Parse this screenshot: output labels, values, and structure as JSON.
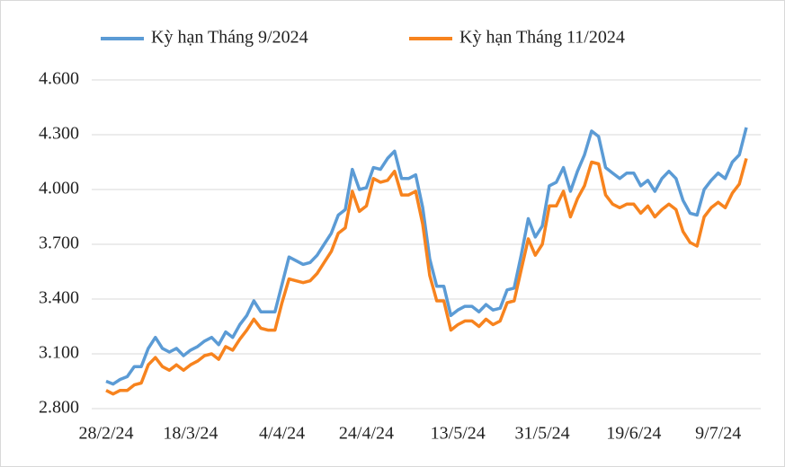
{
  "chart_data": {
    "type": "line",
    "categories": [
      "28/2/24",
      null,
      null,
      null,
      null,
      null,
      null,
      null,
      null,
      null,
      null,
      null,
      "18/3/24",
      null,
      null,
      null,
      null,
      null,
      null,
      null,
      null,
      null,
      null,
      null,
      null,
      "4/4/24",
      null,
      null,
      null,
      null,
      null,
      null,
      null,
      null,
      null,
      null,
      null,
      "24/4/24",
      null,
      null,
      null,
      null,
      null,
      null,
      null,
      null,
      null,
      null,
      null,
      null,
      "13/5/24",
      null,
      null,
      null,
      null,
      null,
      null,
      null,
      null,
      null,
      null,
      null,
      "31/5/24",
      null,
      null,
      null,
      null,
      null,
      null,
      null,
      null,
      null,
      null,
      null,
      null,
      "19/6/24",
      null,
      null,
      null,
      null,
      null,
      null,
      null,
      null,
      null,
      null,
      null,
      "9/7/24",
      null,
      null,
      null,
      null
    ],
    "series": [
      {
        "name": "Kỳ hạn Tháng 9/2024",
        "color": "#5B9BD5",
        "values": [
          2950,
          2935,
          2960,
          2975,
          3030,
          3030,
          3130,
          3190,
          3130,
          3110,
          3130,
          3090,
          3120,
          3140,
          3170,
          3190,
          3150,
          3220,
          3190,
          3260,
          3310,
          3390,
          3330,
          3330,
          3330,
          3480,
          3630,
          3610,
          3590,
          3600,
          3640,
          3700,
          3760,
          3860,
          3890,
          4110,
          4000,
          4010,
          4120,
          4110,
          4170,
          4210,
          4060,
          4060,
          4080,
          3900,
          3620,
          3470,
          3470,
          3310,
          3340,
          3360,
          3360,
          3330,
          3370,
          3340,
          3350,
          3450,
          3460,
          3640,
          3840,
          3740,
          3800,
          4020,
          4040,
          4120,
          3990,
          4100,
          4190,
          4320,
          4290,
          4120,
          4090,
          4060,
          4090,
          4090,
          4020,
          4050,
          3990,
          4060,
          4100,
          4060,
          3940,
          3870,
          3860,
          4000,
          4050,
          4090,
          4060,
          4150,
          4190,
          4340
        ]
      },
      {
        "name": "Kỳ hạn Tháng 11/2024",
        "color": "#F7831E",
        "values": [
          2900,
          2880,
          2900,
          2900,
          2930,
          2940,
          3040,
          3080,
          3030,
          3010,
          3040,
          3010,
          3040,
          3060,
          3090,
          3100,
          3070,
          3140,
          3120,
          3180,
          3230,
          3290,
          3240,
          3230,
          3230,
          3380,
          3510,
          3500,
          3490,
          3500,
          3540,
          3600,
          3660,
          3760,
          3790,
          3990,
          3880,
          3910,
          4060,
          4040,
          4050,
          4100,
          3970,
          3970,
          3990,
          3810,
          3530,
          3390,
          3390,
          3230,
          3260,
          3280,
          3280,
          3250,
          3290,
          3260,
          3280,
          3380,
          3390,
          3560,
          3730,
          3640,
          3700,
          3910,
          3910,
          3990,
          3850,
          3950,
          4020,
          4150,
          4140,
          3970,
          3920,
          3900,
          3920,
          3920,
          3870,
          3910,
          3850,
          3890,
          3920,
          3890,
          3770,
          3710,
          3690,
          3850,
          3900,
          3930,
          3900,
          3980,
          4030,
          4170
        ]
      }
    ],
    "ylim": [
      2800,
      4600
    ],
    "yticks": [
      {
        "value": 2800,
        "label": "2.800"
      },
      {
        "value": 3100,
        "label": "3.100"
      },
      {
        "value": 3400,
        "label": "3.400"
      },
      {
        "value": 3700,
        "label": "3.700"
      },
      {
        "value": 4000,
        "label": "4.000"
      },
      {
        "value": 4300,
        "label": "4.300"
      },
      {
        "value": 4600,
        "label": "4.600"
      }
    ],
    "grid": true,
    "legend": "top"
  }
}
